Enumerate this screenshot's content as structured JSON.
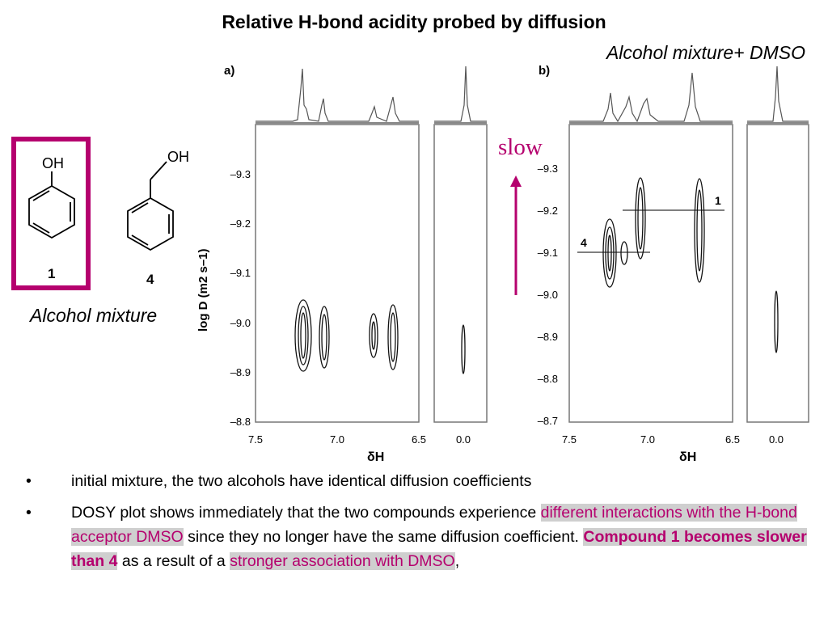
{
  "title": "Relative H-bond acidity probed by diffusion",
  "subtitle_b": "Alcohol mixture+ DMSO",
  "subtitle_a": "Alcohol mixture",
  "slow_label": "slow",
  "compounds": {
    "c1": {
      "label": "1",
      "group": "OH"
    },
    "c4": {
      "label": "4",
      "group": "OH"
    }
  },
  "panel_a": {
    "tag": "a)",
    "ylabel": "log D (m2 s–1)",
    "yticks": [
      "–9.3",
      "–9.2",
      "–9.1",
      "–9.0",
      "–8.9",
      "–8.8"
    ],
    "xticks_main": [
      "7.5",
      "7.0",
      "6.5"
    ],
    "xticks_side": [
      "0.0"
    ],
    "xlabel": "δH"
  },
  "panel_b": {
    "tag": "b)",
    "yticks": [
      "–9.3",
      "–9.2",
      "–9.1",
      "–9.0",
      "–8.9",
      "–8.8",
      "–8.7"
    ],
    "xticks_main": [
      "7.5",
      "7.0",
      "6.5"
    ],
    "xticks_side": [
      "0.0"
    ],
    "xlabel": "δH",
    "label_1": "1",
    "label_4": "4"
  },
  "bullets": {
    "b1": "initial mixture, the two alcohols have identical diffusion coefficients",
    "b2_pre": "DOSY plot shows immediately that the two compounds experience ",
    "b2_hl1": "different interactions with the H-bond acceptor DMSO",
    "b2_mid": " since they no longer have the same diffusion coefficient. ",
    "b2_hl2": "Compound 1 becomes slower than 4",
    "b2_mid2": " as a result of a ",
    "b2_hl3": "stronger association with DMSO",
    "b2_end": ","
  },
  "colors": {
    "accent": "#b5006e",
    "highlight": "#cfcfcf"
  }
}
